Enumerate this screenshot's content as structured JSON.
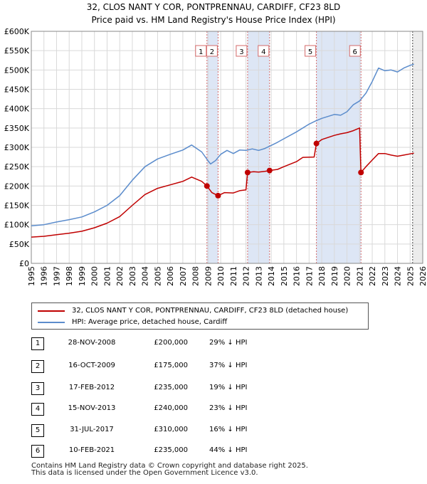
{
  "title_line1": "32, CLOS NANT Y COR, PONTPRENNAU, CARDIFF, CF23 8LD",
  "title_line2": "Price paid vs. HM Land Registry's House Price Index (HPI)",
  "colors": {
    "property": "#c00000",
    "hpi": "#5b8ccc",
    "band": "#dde6f5",
    "marker_line": "#d46a6a"
  },
  "legend": {
    "property": "32, CLOS NANT Y COR, PONTPRENNAU, CARDIFF, CF23 8LD (detached house)",
    "hpi": "HPI: Average price, detached house, Cardiff"
  },
  "sales": [
    {
      "num": "1",
      "date": "28-NOV-2008",
      "price": "£200,000",
      "hpi": "29% ↓ HPI"
    },
    {
      "num": "2",
      "date": "16-OCT-2009",
      "price": "£175,000",
      "hpi": "37% ↓ HPI"
    },
    {
      "num": "3",
      "date": "17-FEB-2012",
      "price": "£235,000",
      "hpi": "19% ↓ HPI"
    },
    {
      "num": "4",
      "date": "15-NOV-2013",
      "price": "£240,000",
      "hpi": "23% ↓ HPI"
    },
    {
      "num": "5",
      "date": "31-JUL-2017",
      "price": "£310,000",
      "hpi": "16% ↓ HPI"
    },
    {
      "num": "6",
      "date": "10-FEB-2021",
      "price": "£235,000",
      "hpi": "44% ↓ HPI"
    }
  ],
  "footer_line1": "Contains HM Land Registry data © Crown copyright and database right 2025.",
  "footer_line2": "This data is licensed under the Open Government Licence v3.0.",
  "chart_data": {
    "type": "line",
    "title": "Price paid vs. HM Land Registry's House Price Index (HPI)",
    "xlim": [
      1995,
      2026
    ],
    "ylim": [
      0,
      600000
    ],
    "x_ticks": [
      1995,
      1996,
      1997,
      1998,
      1999,
      2000,
      2001,
      2002,
      2003,
      2004,
      2005,
      2006,
      2007,
      2008,
      2009,
      2010,
      2011,
      2012,
      2013,
      2014,
      2015,
      2016,
      2017,
      2018,
      2019,
      2020,
      2021,
      2022,
      2023,
      2024,
      2025,
      2026
    ],
    "y_ticks": [
      0,
      50000,
      100000,
      150000,
      200000,
      250000,
      300000,
      350000,
      400000,
      450000,
      500000,
      550000,
      600000
    ],
    "y_tick_labels": [
      "£0",
      "£50K",
      "£100K",
      "£150K",
      "£200K",
      "£250K",
      "£300K",
      "£350K",
      "£400K",
      "£450K",
      "£500K",
      "£550K",
      "£600K"
    ],
    "shaded_ranges": [
      [
        2008.91,
        2009.79
      ],
      [
        2012.13,
        2013.87
      ],
      [
        2017.58,
        2021.11
      ]
    ],
    "projection_start": 2025.2,
    "series": [
      {
        "name": "HPI: Average price, detached house, Cardiff",
        "x": [
          1995,
          1996,
          1997,
          1998,
          1999,
          2000,
          2001,
          2002,
          2003,
          2004,
          2005,
          2006,
          2007,
          2007.7,
          2008.5,
          2009.0,
          2009.2,
          2009.6,
          2010,
          2010.5,
          2011,
          2011.5,
          2012,
          2012.5,
          2013,
          2013.5,
          2014,
          2014.5,
          2015,
          2016,
          2017,
          2017.5,
          2018,
          2019,
          2019.5,
          2020,
          2020.5,
          2021,
          2021.5,
          2022,
          2022.5,
          2023,
          2023.5,
          2024,
          2024.5,
          2025,
          2025.3
        ],
        "y": [
          97000,
          100000,
          107000,
          113000,
          120000,
          133000,
          150000,
          175000,
          215000,
          250000,
          270000,
          282000,
          293000,
          306000,
          288000,
          265000,
          257000,
          266000,
          282000,
          292000,
          284000,
          293000,
          292000,
          296000,
          292000,
          297000,
          305000,
          313000,
          322000,
          340000,
          360000,
          368000,
          375000,
          385000,
          383000,
          392000,
          410000,
          420000,
          440000,
          470000,
          505000,
          498000,
          500000,
          495000,
          505000,
          512000,
          515000
        ]
      },
      {
        "name": "32, CLOS NANT Y COR, PONTPRENNAU, CARDIFF, CF23 8LD (detached house)",
        "x": [
          1995,
          1996,
          1997,
          1998,
          1999,
          2000,
          2001,
          2002,
          2003,
          2004,
          2005,
          2006,
          2007,
          2007.7,
          2008.5,
          2008.91,
          2009.3,
          2009.79,
          2010.3,
          2011,
          2011.5,
          2012.0,
          2012.13,
          2012.6,
          2013.0,
          2013.5,
          2013.87,
          2014.5,
          2015,
          2016,
          2016.5,
          2017.4,
          2017.58,
          2018,
          2019,
          2019.5,
          2020,
          2020.5,
          2021.0,
          2021.11,
          2021.5,
          2022,
          2022.5,
          2023,
          2023.5,
          2024,
          2024.5,
          2025,
          2025.3
        ],
        "y": [
          68000,
          70000,
          74000,
          78000,
          83000,
          92000,
          104000,
          121000,
          150000,
          178000,
          194000,
          203000,
          212000,
          223000,
          212000,
          200000,
          183000,
          175000,
          183000,
          182000,
          188000,
          190000,
          235000,
          237000,
          236000,
          238000,
          240000,
          243000,
          250000,
          263000,
          274000,
          275000,
          310000,
          320000,
          331000,
          335000,
          338000,
          343000,
          350000,
          235000,
          250000,
          267000,
          284000,
          284000,
          280000,
          277000,
          280000,
          283000,
          285000
        ]
      }
    ],
    "sales_points": [
      {
        "label": "1",
        "x": 2008.91,
        "y": 200000
      },
      {
        "label": "2",
        "x": 2009.79,
        "y": 175000
      },
      {
        "label": "3",
        "x": 2012.13,
        "y": 235000
      },
      {
        "label": "4",
        "x": 2013.87,
        "y": 240000
      },
      {
        "label": "5",
        "x": 2017.58,
        "y": 310000
      },
      {
        "label": "6",
        "x": 2021.11,
        "y": 235000
      }
    ]
  }
}
